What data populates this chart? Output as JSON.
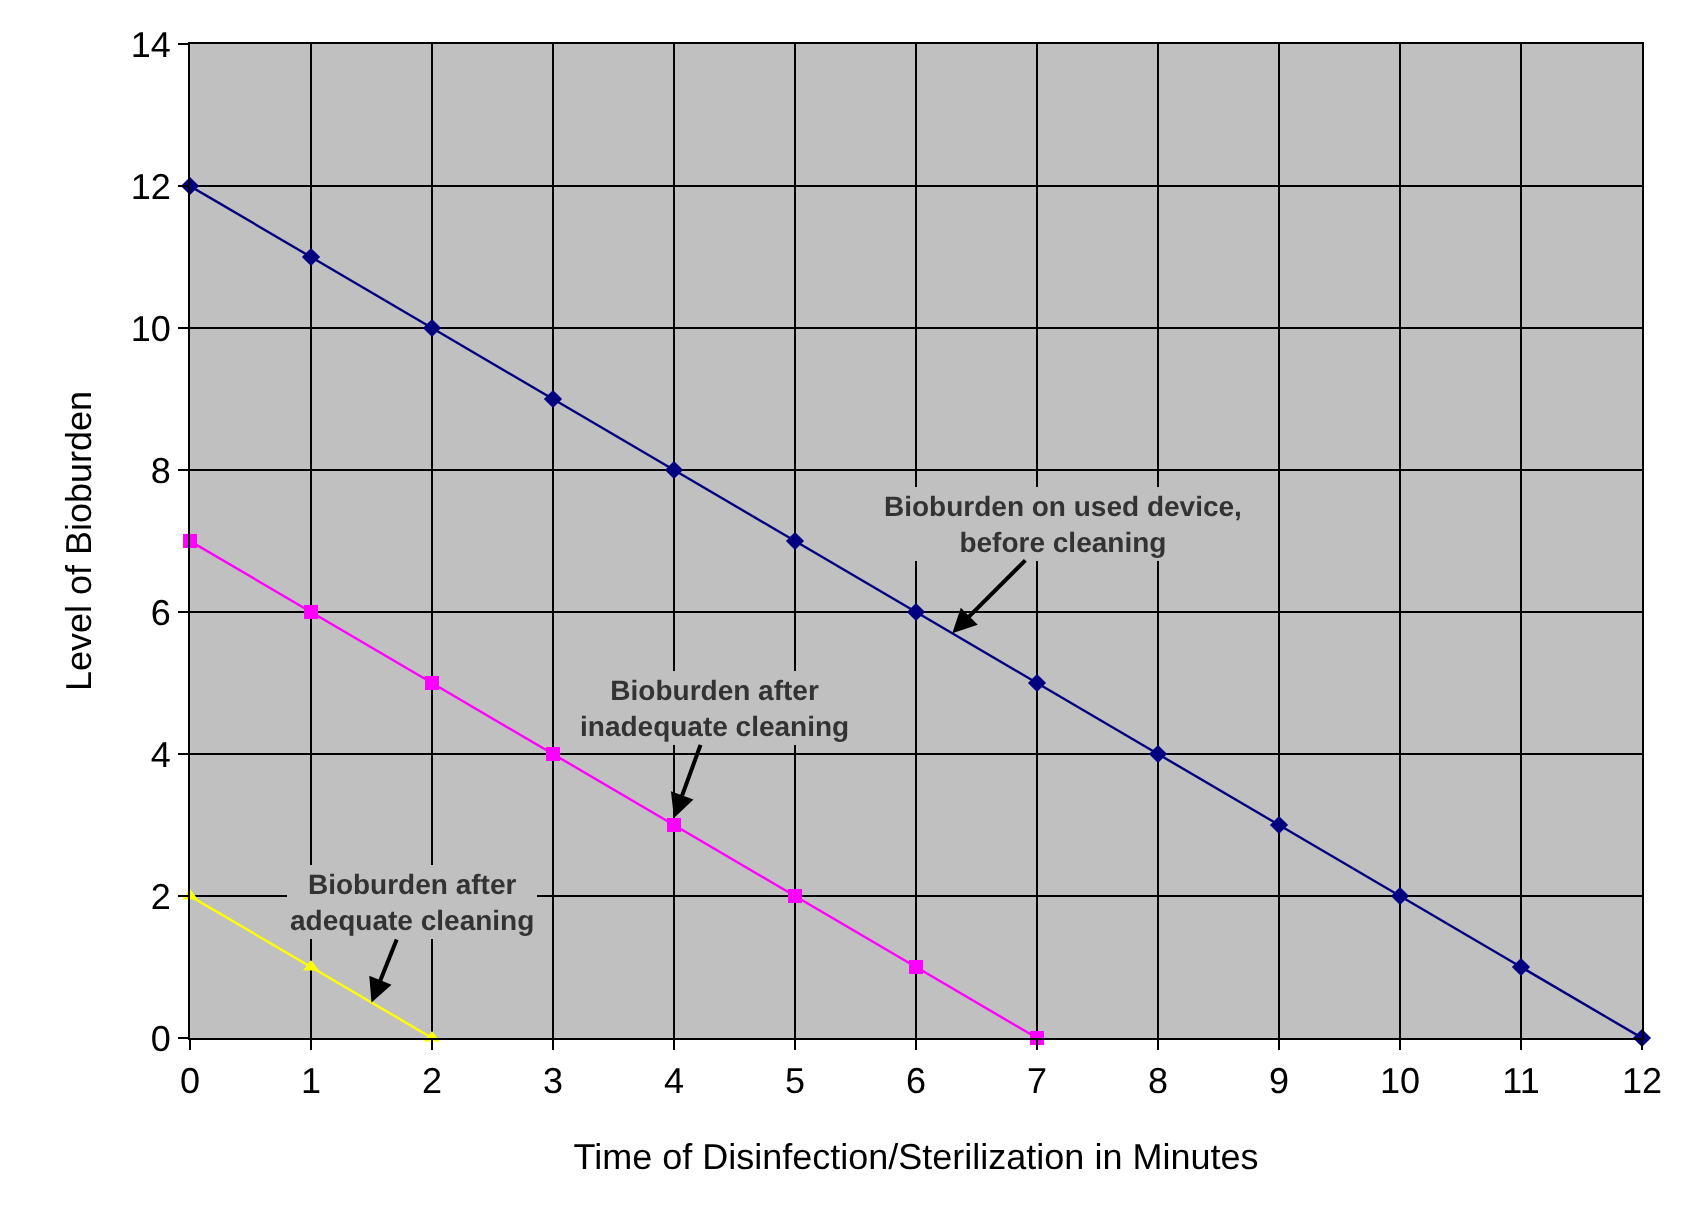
{
  "chart_data": {
    "type": "line",
    "xlabel": "Time of Disinfection/Sterilization in Minutes",
    "ylabel": "Level of Bioburden",
    "xlim": [
      0,
      12
    ],
    "xticks": [
      0,
      1,
      2,
      3,
      4,
      5,
      6,
      7,
      8,
      9,
      10,
      11,
      12
    ],
    "ylim": [
      0,
      14
    ],
    "yticks": [
      0,
      2,
      4,
      6,
      8,
      10,
      12,
      14
    ],
    "grid": true,
    "series": [
      {
        "color": "#000080",
        "marker": "diamond",
        "x": [
          0,
          1,
          2,
          3,
          4,
          5,
          6,
          7,
          8,
          9,
          10,
          11,
          12
        ],
        "values": [
          12,
          11,
          10,
          9,
          8,
          7,
          6,
          5,
          4,
          3,
          2,
          1,
          0
        ]
      },
      {
        "color": "#ff00ff",
        "marker": "square",
        "x": [
          0,
          1,
          2,
          3,
          4,
          5,
          6,
          7
        ],
        "values": [
          7,
          6,
          5,
          4,
          3,
          2,
          1,
          0
        ]
      },
      {
        "color": "#ffff00",
        "marker": "triangle",
        "x": [
          0,
          1,
          2
        ],
        "values": [
          2,
          1,
          0
        ]
      }
    ],
    "annotations": [
      {
        "text": "Bioburden on used device,\nbefore cleaning",
        "x": 6.3,
        "y": 5.7
      },
      {
        "text": "Bioburden after\ninadequate cleaning",
        "x": 4,
        "y": 3.1
      },
      {
        "text": "Bioburden after\nadequate cleaning",
        "x": 1.5,
        "y": 0.5
      }
    ]
  }
}
